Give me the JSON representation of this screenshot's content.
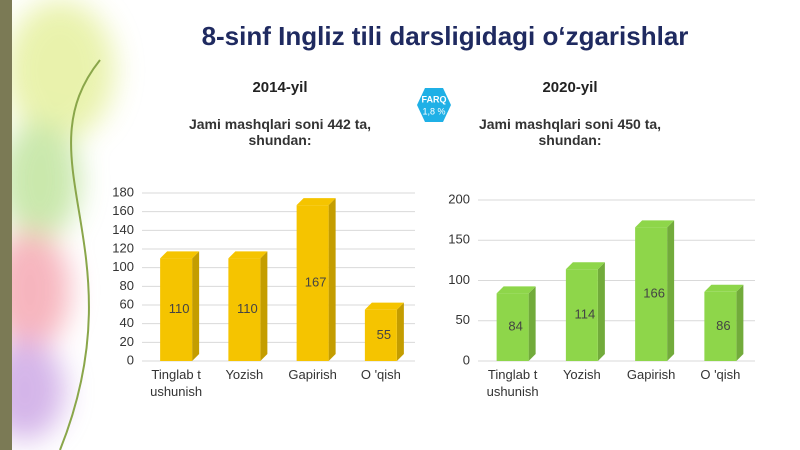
{
  "title": "8-sinf Ingliz tili darsligidagi o‘zgarishlar",
  "badge": {
    "label": "FARQ",
    "value": "1,8 %"
  },
  "chart_data": [
    {
      "type": "bar",
      "title": "2014-yil",
      "subtitle": "Jami mashqlari soni 442 ta, shundan:",
      "categories": [
        "Tinglab tushunish",
        "Yozish",
        "Gapirish",
        "O 'qish"
      ],
      "values": [
        110,
        110,
        167,
        55
      ],
      "color": "#f5c400",
      "ylim": [
        0,
        180
      ],
      "yticks": [
        0,
        20,
        40,
        60,
        80,
        100,
        120,
        140,
        160,
        180
      ],
      "grid": true
    },
    {
      "type": "bar",
      "title": "2020-yil",
      "subtitle": "Jami mashqlari soni 450 ta, shundan:",
      "categories": [
        "Tinglab tushunish",
        "Yozish",
        "Gapirish",
        "O 'qish"
      ],
      "values": [
        84,
        114,
        166,
        86
      ],
      "color": "#8ed64a",
      "ylim": [
        0,
        200
      ],
      "yticks": [
        0,
        50,
        100,
        150,
        200
      ],
      "grid": true
    }
  ]
}
